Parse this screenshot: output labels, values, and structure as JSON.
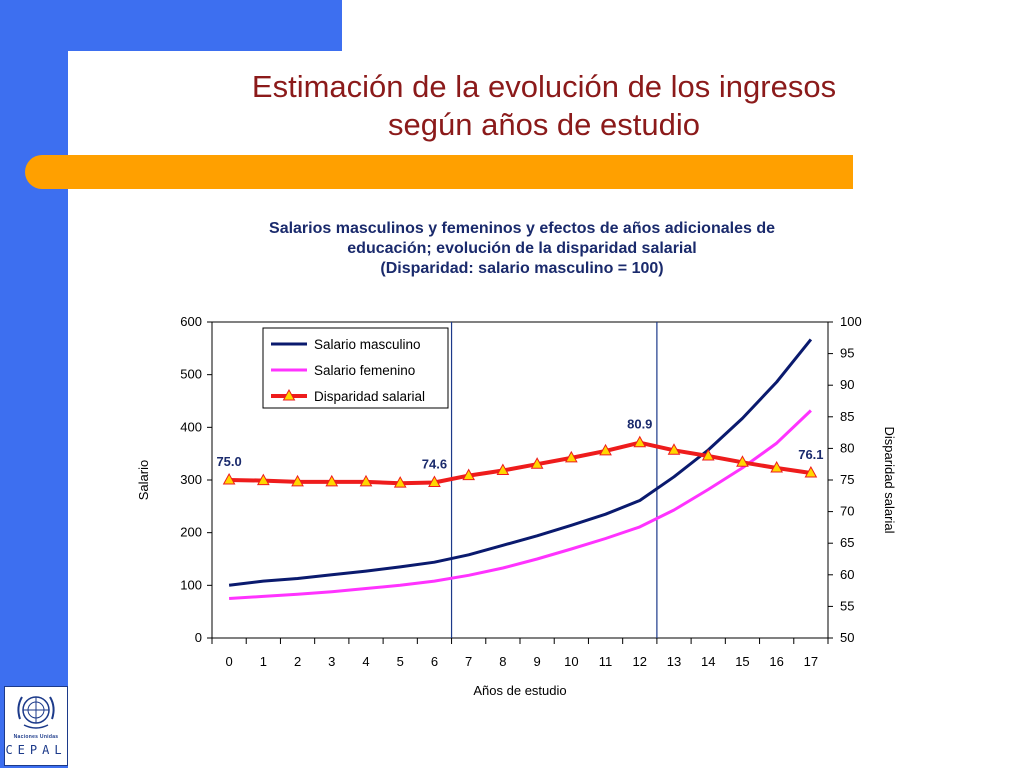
{
  "slide": {
    "title_line1": "Estimación de la evolución de los ingresos",
    "title_line2": "según años de estudio",
    "logo": {
      "org_name": "Naciones Unidas",
      "acronym": "CEPAL",
      "emblem": "un-emblem-icon"
    }
  },
  "colors": {
    "side_bar": "#3d6ff0",
    "orange_bar": "#ffa000",
    "title": "#8b1a1a",
    "male": "#0a1a6e",
    "female": "#ff33ff",
    "gap": "#ee1c1c",
    "marker_fill": "#ffd700",
    "vline": "#1c3a8a"
  },
  "chart_data": {
    "type": "line",
    "title_line1": "Salarios masculinos y femeninos y efectos de años adicionales de",
    "title_line2": "educación; evolución de la disparidad salarial",
    "title_line3": "(Disparidad: salario masculino = 100)",
    "xlabel": "Años de estudio",
    "ylabel_left": "Salario",
    "ylabel_right": "Disparidad salarial",
    "x": [
      0,
      1,
      2,
      3,
      4,
      5,
      6,
      7,
      8,
      9,
      10,
      11,
      12,
      13,
      14,
      15,
      16,
      17
    ],
    "ylim_left": [
      0,
      600
    ],
    "yticks_left": [
      0,
      100,
      200,
      300,
      400,
      500,
      600
    ],
    "ylim_right": [
      50,
      100
    ],
    "yticks_right": [
      50,
      55,
      60,
      65,
      70,
      75,
      80,
      85,
      90,
      95,
      100
    ],
    "grid": false,
    "legend_position": "top-left",
    "vertical_markers_between": [
      [
        6,
        7
      ],
      [
        12,
        13
      ]
    ],
    "series": [
      {
        "name": "Salario masculino",
        "axis": "left",
        "marker": "none",
        "values": [
          100,
          108,
          113,
          120,
          127,
          135,
          144,
          158,
          176,
          194,
          214,
          235,
          261,
          306,
          357,
          417,
          486,
          567
        ]
      },
      {
        "name": "Salario femenino",
        "axis": "left",
        "marker": "none",
        "values": [
          75,
          79,
          83,
          88,
          94,
          100,
          108,
          119,
          133,
          150,
          169,
          189,
          211,
          243,
          282,
          323,
          370,
          432
        ]
      },
      {
        "name": "Disparidad salarial",
        "axis": "right",
        "marker": "triangle",
        "values": [
          75.0,
          74.9,
          74.7,
          74.7,
          74.7,
          74.5,
          74.6,
          75.7,
          76.5,
          77.5,
          78.5,
          79.6,
          80.9,
          79.7,
          78.8,
          77.8,
          76.9,
          76.1
        ]
      }
    ],
    "data_labels": [
      {
        "x": 0,
        "text": "75.0"
      },
      {
        "x": 6,
        "text": "74.6"
      },
      {
        "x": 12,
        "text": "80.9"
      },
      {
        "x": 17,
        "text": "76.1"
      }
    ]
  }
}
